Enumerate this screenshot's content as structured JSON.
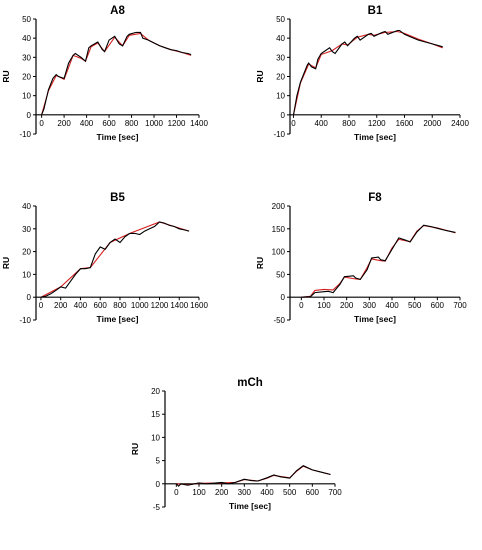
{
  "chart_data": [
    {
      "type": "line",
      "title": "A8",
      "xlabel": "Time [sec]",
      "ylabel": "RU",
      "xlim": [
        -50,
        1400
      ],
      "ylim": [
        -10,
        50
      ],
      "xticks": [
        0,
        200,
        400,
        600,
        800,
        1000,
        1200,
        1400
      ],
      "yticks": [
        -10,
        0,
        10,
        20,
        30,
        40,
        50
      ],
      "series": [
        {
          "color": "#000000",
          "x": [
            0,
            20,
            60,
            100,
            130,
            150,
            200,
            240,
            280,
            300,
            350,
            390,
            420,
            440,
            500,
            540,
            560,
            600,
            650,
            690,
            720,
            760,
            780,
            840,
            880,
            900,
            950,
            1000,
            1050,
            1100,
            1150,
            1200,
            1250,
            1300,
            1330
          ],
          "y": [
            0,
            3,
            13,
            19,
            21,
            20,
            19,
            27,
            31,
            32,
            30,
            28,
            35,
            36,
            38,
            34,
            33,
            39,
            41,
            37,
            36,
            41,
            42,
            43,
            43,
            40,
            39,
            37.5,
            36,
            35,
            34,
            33.5,
            32.5,
            32,
            31.5
          ]
        },
        {
          "color": "#d62020",
          "x": [
            0,
            60,
            130,
            150,
            200,
            280,
            350,
            390,
            440,
            500,
            560,
            650,
            720,
            780,
            880,
            950,
            1050,
            1150,
            1250,
            1330
          ],
          "y": [
            0,
            12.5,
            20.5,
            20,
            18.5,
            31,
            29.5,
            28,
            35.5,
            37.5,
            33,
            40.5,
            36,
            41.5,
            42.5,
            39,
            36,
            34,
            32.5,
            31
          ]
        }
      ]
    },
    {
      "type": "line",
      "title": "B1",
      "xlabel": "Time [sec]",
      "ylabel": "RU",
      "xlim": [
        -50,
        2400
      ],
      "ylim": [
        -10,
        50
      ],
      "xticks": [
        0,
        400,
        800,
        1200,
        1600,
        2000,
        2400
      ],
      "yticks": [
        -10,
        0,
        10,
        20,
        30,
        40,
        50
      ],
      "series": [
        {
          "color": "#000000",
          "x": [
            0,
            50,
            100,
            200,
            220,
            260,
            320,
            350,
            400,
            520,
            560,
            600,
            700,
            740,
            780,
            880,
            920,
            960,
            1080,
            1120,
            1160,
            1280,
            1320,
            1360,
            1500,
            1530,
            1600,
            1700,
            1800,
            1900,
            2000,
            2100,
            2150
          ],
          "y": [
            0,
            10,
            17,
            26,
            27,
            25,
            24,
            29,
            32,
            35,
            33,
            32,
            37,
            38,
            36,
            40,
            41,
            39,
            42,
            42.5,
            41,
            43,
            43.5,
            42,
            44,
            44,
            42,
            40.5,
            39,
            38,
            37,
            36,
            35.5
          ]
        },
        {
          "color": "#d62020",
          "x": [
            0,
            100,
            220,
            320,
            400,
            560,
            700,
            780,
            920,
            1080,
            1160,
            1320,
            1500,
            1600,
            1800,
            2000,
            2150
          ],
          "y": [
            0,
            16.5,
            26.5,
            24.5,
            31.5,
            33.5,
            37,
            36.5,
            40.5,
            42,
            41.5,
            43,
            43.5,
            42.5,
            39.5,
            37,
            35
          ]
        }
      ]
    },
    {
      "type": "line",
      "title": "B5",
      "xlabel": "Time [sec]",
      "ylabel": "RU",
      "xlim": [
        -50,
        1600
      ],
      "ylim": [
        -10,
        40
      ],
      "xticks": [
        0,
        200,
        400,
        600,
        800,
        1000,
        1200,
        1400,
        1600
      ],
      "yticks": [
        -10,
        0,
        10,
        20,
        30,
        40
      ],
      "series": [
        {
          "color": "#000000",
          "x": [
            0,
            50,
            100,
            150,
            200,
            250,
            300,
            350,
            400,
            450,
            500,
            550,
            600,
            650,
            700,
            750,
            800,
            850,
            900,
            950,
            1000,
            1050,
            1100,
            1150,
            1200,
            1250,
            1300,
            1350,
            1400,
            1450,
            1500
          ],
          "y": [
            0,
            0.5,
            1.5,
            3,
            4.5,
            4,
            7,
            10,
            12.5,
            12.5,
            13,
            19,
            22,
            21,
            24,
            25.5,
            24,
            26.5,
            28,
            28,
            27.5,
            29,
            30,
            31,
            33,
            32.5,
            31.5,
            31,
            30,
            29.5,
            29
          ]
        },
        {
          "color": "#d62020",
          "x": [
            0,
            200,
            400,
            500,
            700,
            900,
            1200,
            1500
          ],
          "y": [
            0,
            4.5,
            12.5,
            13,
            24,
            28,
            33,
            29
          ]
        }
      ]
    },
    {
      "type": "line",
      "title": "F8",
      "xlabel": "Time [sec]",
      "ylabel": "RU",
      "xlim": [
        -50,
        700
      ],
      "ylim": [
        -50,
        200
      ],
      "xticks": [
        0,
        100,
        200,
        300,
        400,
        500,
        600,
        700
      ],
      "yticks": [
        -50,
        0,
        50,
        100,
        150,
        200
      ],
      "series": [
        {
          "color": "#000000",
          "x": [
            0,
            40,
            60,
            100,
            120,
            140,
            170,
            190,
            230,
            240,
            260,
            290,
            310,
            340,
            350,
            370,
            400,
            430,
            460,
            480,
            510,
            540,
            570,
            600,
            640,
            680
          ],
          "y": [
            0,
            1,
            10,
            12,
            13,
            10,
            28,
            45,
            47,
            42,
            39,
            60,
            86,
            88,
            82,
            80,
            105,
            130,
            125,
            121,
            143,
            158,
            155,
            151,
            146,
            142
          ]
        },
        {
          "color": "#d62020",
          "x": [
            0,
            40,
            60,
            100,
            140,
            170,
            190,
            240,
            260,
            290,
            310,
            350,
            370,
            400,
            430,
            480,
            510,
            540,
            600,
            680
          ],
          "y": [
            0,
            2,
            15,
            17,
            16,
            30,
            44,
            40,
            39,
            65,
            84,
            80,
            79,
            108,
            127,
            122,
            145,
            157,
            152,
            141
          ]
        }
      ]
    },
    {
      "type": "line",
      "title": "mCh",
      "xlabel": "Time [sec]",
      "ylabel": "RU",
      "xlim": [
        -50,
        700
      ],
      "ylim": [
        -5,
        20
      ],
      "xticks": [
        0,
        100,
        200,
        300,
        400,
        500,
        600,
        700
      ],
      "yticks": [
        -5,
        0,
        5,
        10,
        15,
        20
      ],
      "series": [
        {
          "color": "#000000",
          "x": [
            0,
            10,
            20,
            50,
            80,
            100,
            130,
            160,
            200,
            230,
            260,
            300,
            330,
            360,
            400,
            430,
            460,
            500,
            530,
            560,
            600,
            640,
            680
          ],
          "y": [
            0,
            -0.5,
            0,
            -0.3,
            0,
            0.2,
            0,
            0.1,
            0.3,
            0,
            0.3,
            1,
            0.7,
            0.6,
            1.3,
            1.9,
            1.5,
            1.2,
            2.8,
            3.9,
            3,
            2.5,
            2
          ]
        },
        {
          "color": "#d62020",
          "x": [
            0,
            50,
            100,
            200,
            260,
            300,
            360,
            400,
            430,
            500,
            530,
            560,
            600,
            680
          ],
          "y": [
            0,
            -0.2,
            0.1,
            0.2,
            0.3,
            0.9,
            0.6,
            1.2,
            1.8,
            1.3,
            2.7,
            3.8,
            3,
            2
          ]
        }
      ]
    }
  ]
}
